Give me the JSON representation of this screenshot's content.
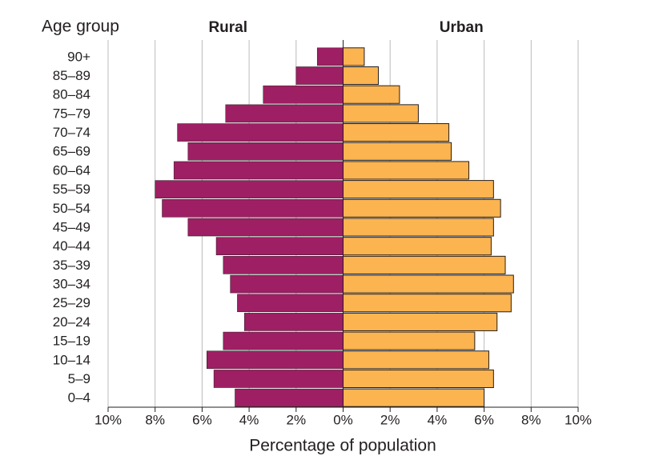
{
  "chart_data": {
    "type": "pyramid",
    "y_axis_label": "Age group",
    "x_axis_label": "Percentage of population",
    "categories": [
      "90+",
      "85–89",
      "80–84",
      "75–79",
      "70–74",
      "65–69",
      "60–64",
      "55–59",
      "50–54",
      "45–49",
      "40–44",
      "35–39",
      "30–34",
      "25–29",
      "20–24",
      "15–19",
      "10–14",
      "5–9",
      "0–4"
    ],
    "series": [
      {
        "name": "Rural",
        "color": "#9e1f63",
        "side": "left",
        "values": [
          1.1,
          2.0,
          3.4,
          5.0,
          7.05,
          6.6,
          7.2,
          8.0,
          7.7,
          6.6,
          5.4,
          5.1,
          4.8,
          4.5,
          4.2,
          5.1,
          5.8,
          5.5,
          4.6
        ]
      },
      {
        "name": "Urban",
        "color": "#fbb450",
        "side": "right",
        "values": [
          0.9,
          1.5,
          2.4,
          3.2,
          4.5,
          4.6,
          5.35,
          6.4,
          6.7,
          6.4,
          6.3,
          6.9,
          7.25,
          7.15,
          6.55,
          5.6,
          6.2,
          6.4,
          6.0
        ]
      }
    ],
    "xlim": [
      -10,
      10
    ],
    "xticks": [
      {
        "value": -10,
        "label": "10%"
      },
      {
        "value": -8,
        "label": "8%"
      },
      {
        "value": -6,
        "label": "6%"
      },
      {
        "value": -4,
        "label": "4%"
      },
      {
        "value": -2,
        "label": "2%"
      },
      {
        "value": 0,
        "label": "0%"
      },
      {
        "value": 2,
        "label": "2%"
      },
      {
        "value": 4,
        "label": "4%"
      },
      {
        "value": 6,
        "label": "6%"
      },
      {
        "value": 8,
        "label": "8%"
      },
      {
        "value": 10,
        "label": "10%"
      }
    ],
    "grid": true
  }
}
